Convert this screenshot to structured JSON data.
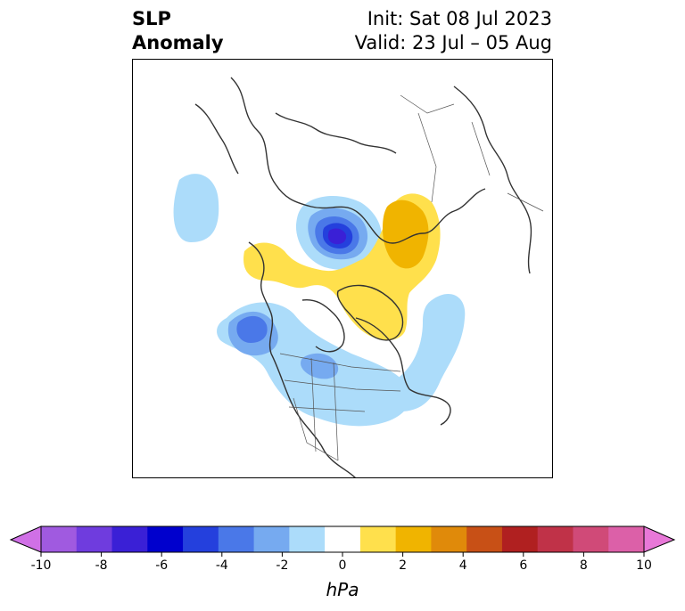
{
  "header": {
    "title_line1": "SLP",
    "title_line2": "Anomaly",
    "init": "Init: Sat 08 Jul 2023",
    "valid": "Valid: 23 Jul – 05 Aug"
  },
  "colorbar": {
    "unit": "hPa",
    "ticks": [
      "-10",
      "-8",
      "-6",
      "-4",
      "-2",
      "0",
      "2",
      "4",
      "6",
      "8",
      "10"
    ],
    "colors": [
      "#d070e6",
      "#a05ae0",
      "#6f3cde",
      "#3a20d6",
      "#0000cd",
      "#2440dd",
      "#4a78e8",
      "#76aaf0",
      "#acdcfa",
      "#ffffff",
      "#ffe04c",
      "#f0b400",
      "#e08a0a",
      "#c85016",
      "#b02020",
      "#c03248",
      "#d04a78",
      "#dc60a8",
      "#e878d8"
    ]
  },
  "map": {
    "fill_colors": {
      "light_blue": "#acdcfa",
      "mid_blue": "#76aaf0",
      "blue": "#4a78e8",
      "deep_blue": "#2440dd",
      "dark_blue": "#3a20d6",
      "yellow": "#ffe04c",
      "orange": "#f0b400",
      "coastline": "#333333"
    }
  }
}
